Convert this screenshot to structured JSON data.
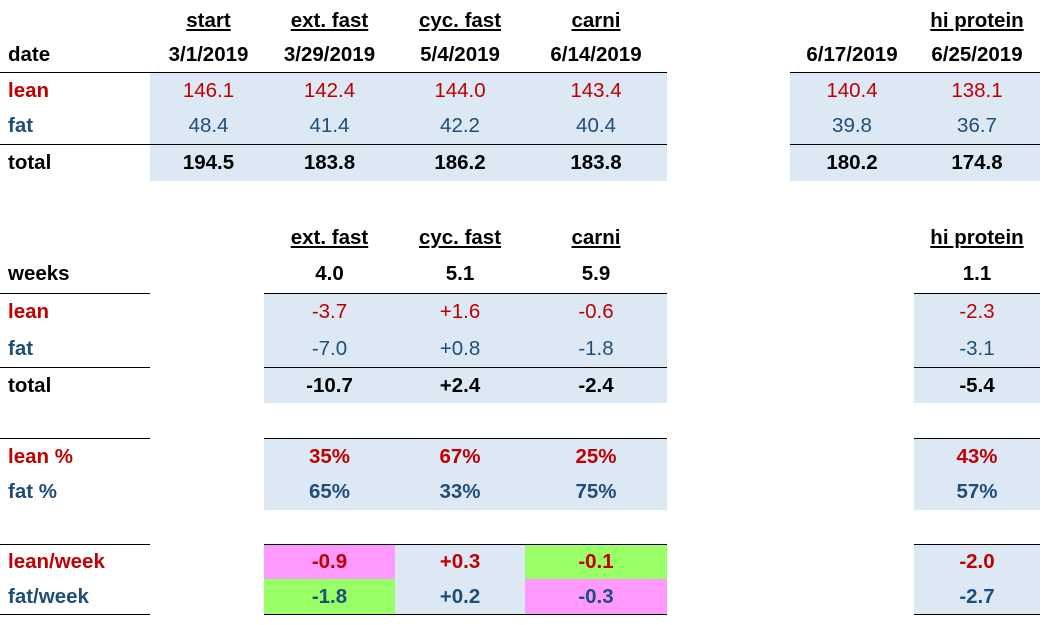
{
  "top": {
    "headers": [
      "start",
      "ext. fast",
      "cyc. fast",
      "carni",
      "hi protein"
    ],
    "date_label": "date",
    "dates": [
      "3/1/2019",
      "3/29/2019",
      "5/4/2019",
      "6/14/2019",
      "6/17/2019",
      "6/25/2019"
    ],
    "lean_label": "lean",
    "lean": [
      "146.1",
      "142.4",
      "144.0",
      "143.4",
      "140.4",
      "138.1"
    ],
    "fat_label": "fat",
    "fat": [
      "48.4",
      "41.4",
      "42.2",
      "40.4",
      "39.8",
      "36.7"
    ],
    "total_label": "total",
    "total": [
      "194.5",
      "183.8",
      "186.2",
      "183.8",
      "180.2",
      "174.8"
    ]
  },
  "changes": {
    "headers": [
      "ext. fast",
      "cyc. fast",
      "carni",
      "hi protein"
    ],
    "weeks_label": "weeks",
    "weeks": [
      "4.0",
      "5.1",
      "5.9",
      "1.1"
    ],
    "lean_label": "lean",
    "lean": [
      "-3.7",
      "+1.6",
      "-0.6",
      "-2.3"
    ],
    "fat_label": "fat",
    "fat": [
      "-7.0",
      "+0.8",
      "-1.8",
      "-3.1"
    ],
    "total_label": "total",
    "total": [
      "-10.7",
      "+2.4",
      "-2.4",
      "-5.4"
    ]
  },
  "pct": {
    "lean_label": "lean %",
    "lean": [
      "35%",
      "67%",
      "25%",
      "43%"
    ],
    "fat_label": "fat %",
    "fat": [
      "65%",
      "33%",
      "75%",
      "57%"
    ]
  },
  "rate": {
    "lean_label": "lean/week",
    "lean": [
      "-0.9",
      "+0.3",
      "-0.1",
      "-2.0"
    ],
    "fat_label": "fat/week",
    "fat": [
      "-1.8",
      "+0.2",
      "-0.3",
      "-2.7"
    ]
  },
  "colors": {
    "lean": "#c00000",
    "fat": "#1f4e79",
    "band": "#dce8f4",
    "worse": "#ff99ff",
    "better": "#99ff66"
  }
}
